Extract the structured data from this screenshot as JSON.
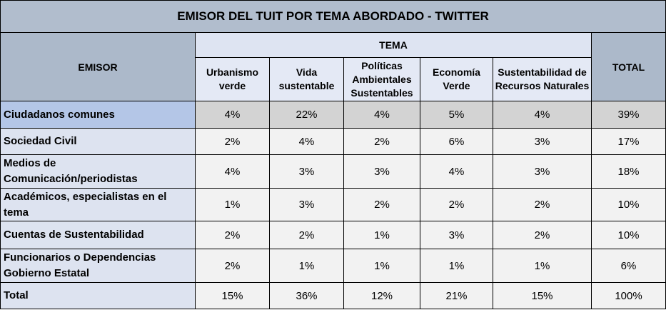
{
  "title": "EMISOR DEL TUIT POR TEMA ABORDADO - TWITTER",
  "header": {
    "emisor": "EMISOR",
    "tema": "TEMA",
    "total": "TOTAL",
    "temas": [
      "Urbanismo verde",
      "Vida sustentable",
      "Políticas Ambientales Sustentables",
      "Economía Verde",
      "Sustentabilidad de Recursos Naturales"
    ]
  },
  "rows": [
    {
      "label": "Ciudadanos comunes",
      "cells": [
        "4%",
        "22%",
        "4%",
        "5%",
        "4%",
        "39%"
      ]
    },
    {
      "label": "Sociedad Civil",
      "cells": [
        "2%",
        "4%",
        "2%",
        "6%",
        "3%",
        "17%"
      ]
    },
    {
      "label": "Medios de Comunicación/periodistas",
      "cells": [
        "4%",
        "3%",
        "3%",
        "4%",
        "3%",
        "18%"
      ]
    },
    {
      "label": "Académicos, especialistas en el tema",
      "cells": [
        "1%",
        "3%",
        "2%",
        "2%",
        "2%",
        "10%"
      ]
    },
    {
      "label": "Cuentas de Sustentabilidad",
      "cells": [
        "2%",
        "2%",
        "1%",
        "3%",
        "2%",
        "10%"
      ]
    },
    {
      "label": "Funcionarios o Dependencias Gobierno Estatal",
      "cells": [
        "2%",
        "1%",
        "1%",
        "1%",
        "1%",
        "6%"
      ]
    },
    {
      "label": "Total",
      "cells": [
        "15%",
        "36%",
        "12%",
        "21%",
        "15%",
        "100%"
      ]
    }
  ]
}
